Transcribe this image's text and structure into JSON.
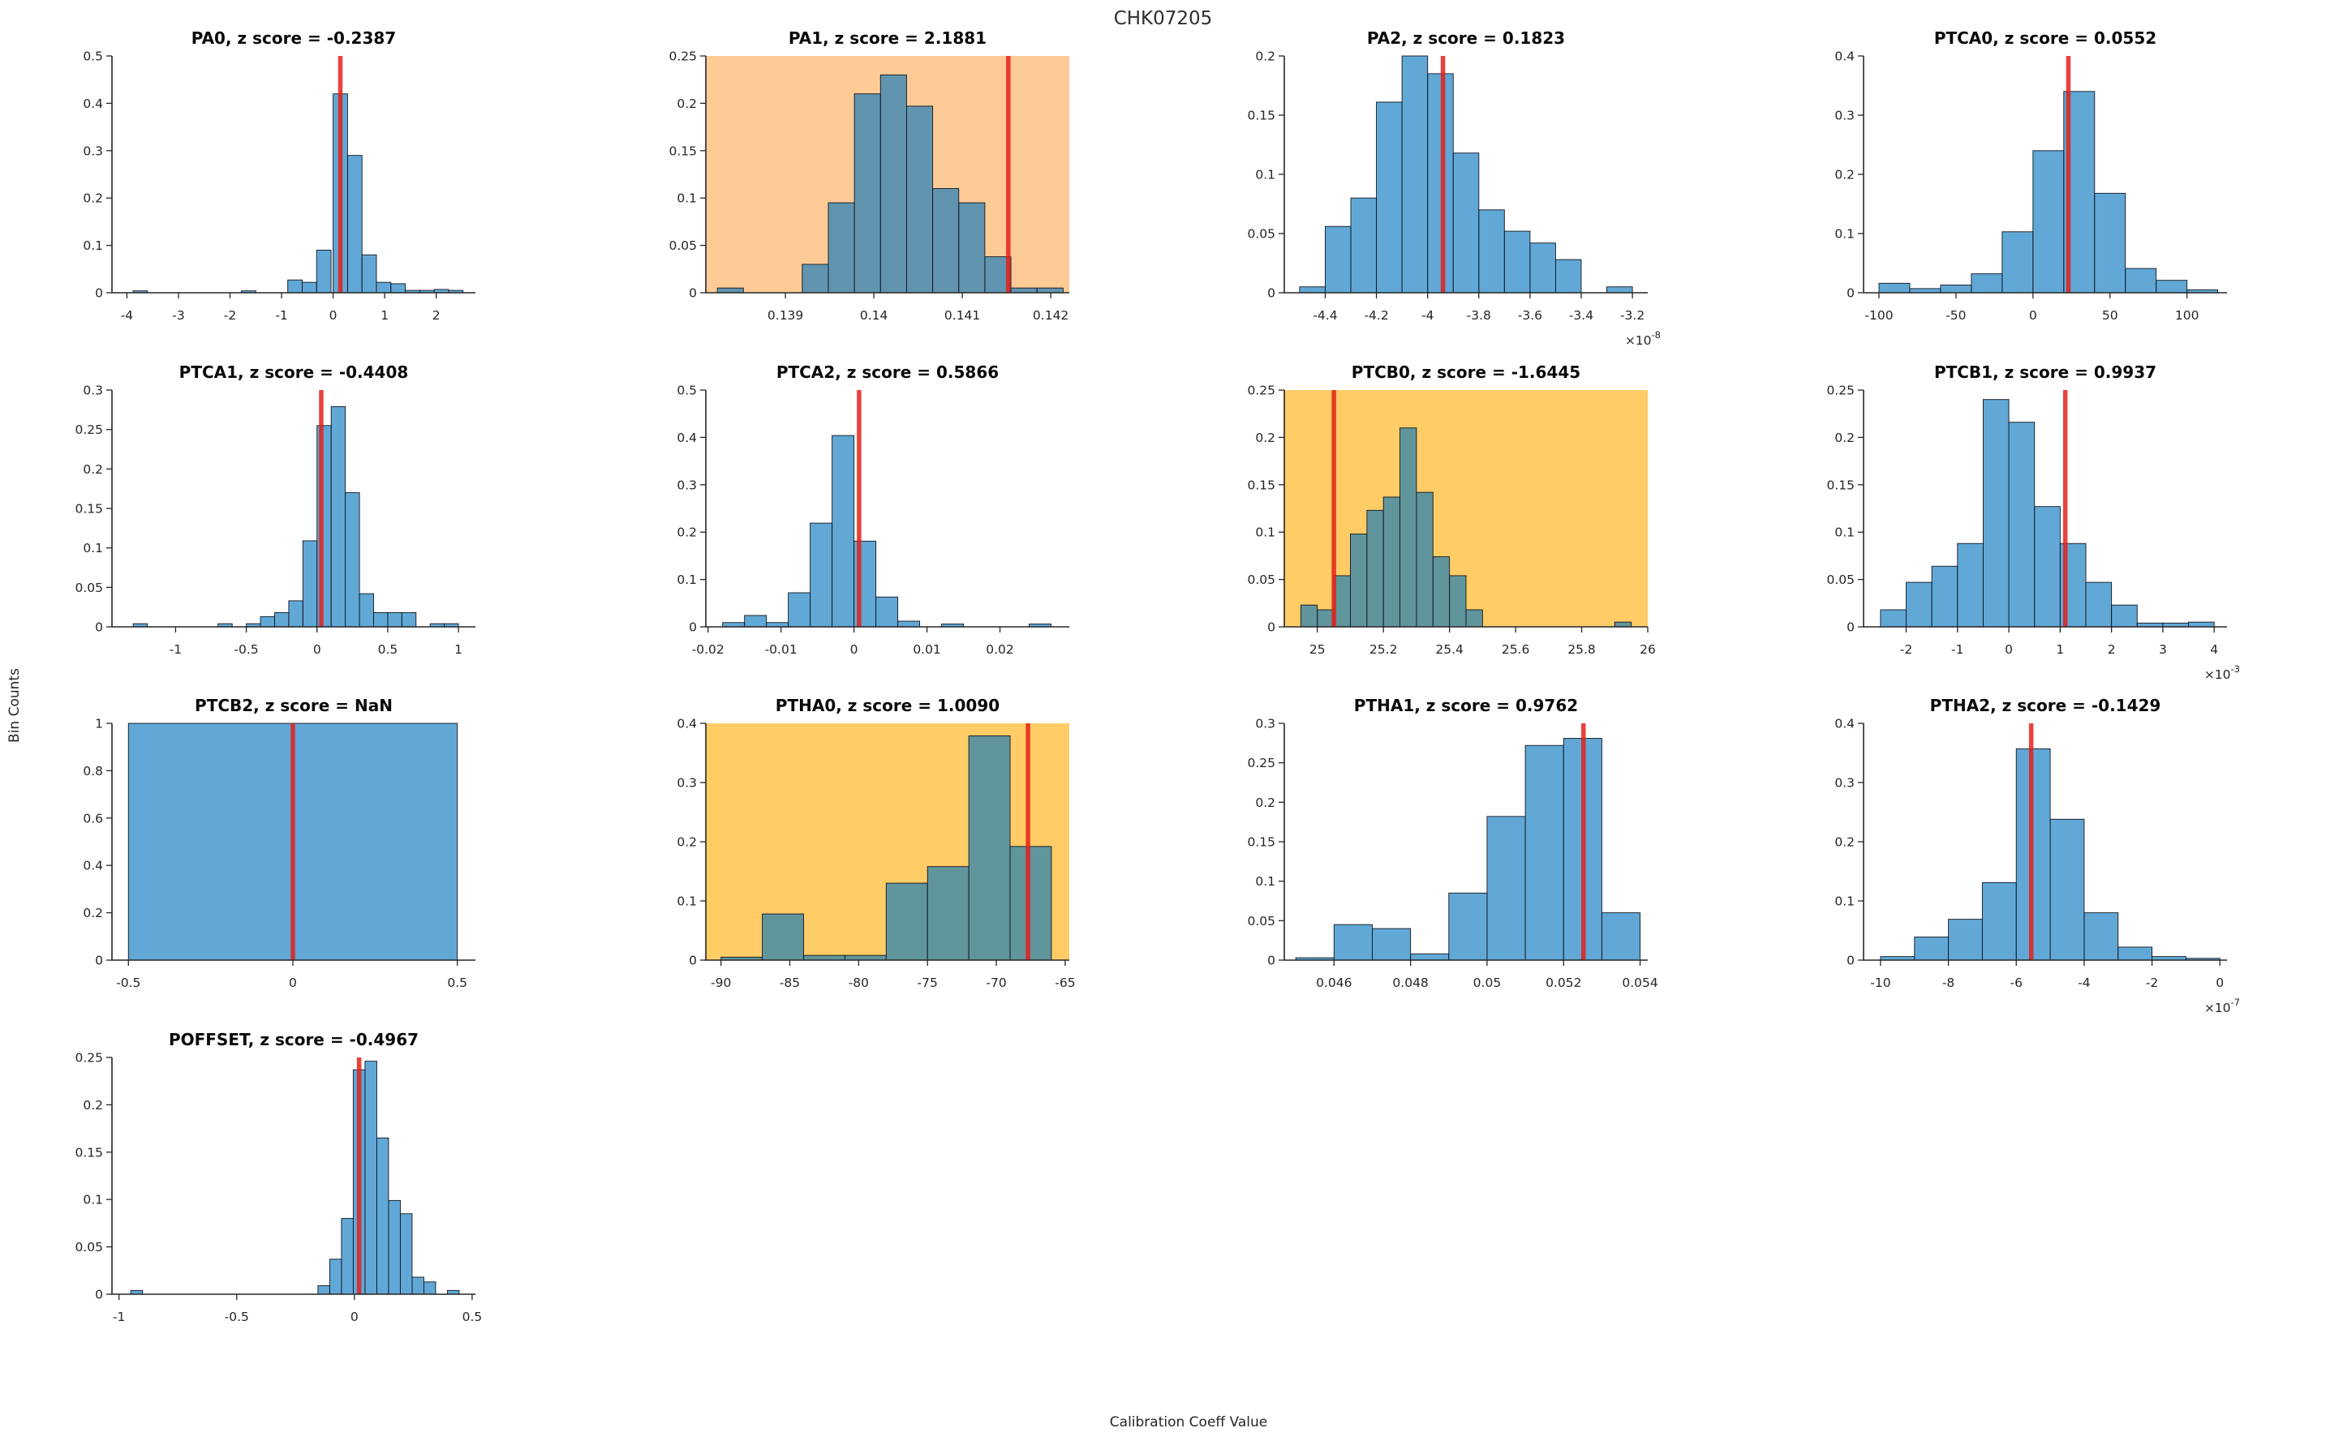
{
  "figure": {
    "title": "CHK07205",
    "xlabel": "Calibration Coeff Value",
    "ylabel": "Bin Counts"
  },
  "colors": {
    "bar_fill": "#0072BD",
    "bar_fill_alpha": 0.62,
    "bar_edge": "#15151f",
    "marker_red": "#e51e17",
    "marker_alpha": 0.84,
    "axis": "#262626",
    "warn_orange": "#FECB97",
    "warn_amber": "#FFCC66"
  },
  "chart_data": [
    {
      "type": "histogram",
      "id": "PA0",
      "title": "PA0, z score = -0.2387",
      "grid": {
        "row": 0,
        "col": 0
      },
      "bg": null,
      "xlim": [
        -4.29,
        2.76
      ],
      "ylim": [
        0,
        0.5
      ],
      "xticks": {
        "values": [
          -4,
          -3,
          -2,
          -1,
          0,
          1,
          2
        ],
        "labels": [
          "-4",
          "-3",
          "-2",
          "-1",
          "0",
          "1",
          "2"
        ]
      },
      "yticks": {
        "values": [
          0,
          0.1,
          0.2,
          0.3,
          0.4,
          0.5
        ],
        "labels": [
          "0",
          "0.1",
          "0.2",
          "0.3",
          "0.4",
          "0.5"
        ]
      },
      "x_exponent": null,
      "bin_width": 0.28,
      "bins": [
        [
          -3.88,
          0.004
        ],
        [
          -1.78,
          0.004
        ],
        [
          -0.88,
          0.027
        ],
        [
          -0.6,
          0.022
        ],
        [
          -0.32,
          0.09
        ],
        [
          0,
          0.42
        ],
        [
          0.28,
          0.29
        ],
        [
          0.56,
          0.08
        ],
        [
          0.84,
          0.022
        ],
        [
          1.12,
          0.019
        ],
        [
          1.4,
          0.005
        ],
        [
          1.68,
          0.005
        ],
        [
          1.96,
          0.007
        ],
        [
          2.24,
          0.005
        ]
      ],
      "marker_x": 0.14
    },
    {
      "type": "histogram",
      "id": "PA1",
      "title": "PA1, z score = 2.1881",
      "grid": {
        "row": 0,
        "col": 1
      },
      "bg": "#FECB97",
      "xlim": [
        0.1381,
        0.14221
      ],
      "ylim": [
        0,
        0.25
      ],
      "xticks": {
        "values": [
          0.139,
          0.14,
          0.141,
          0.142
        ],
        "labels": [
          "0.139",
          "0.14",
          "0.141",
          "0.142"
        ]
      },
      "yticks": {
        "values": [
          0,
          0.05,
          0.1,
          0.15,
          0.2,
          0.25
        ],
        "labels": [
          "0",
          "0.05",
          "0.1",
          "0.15",
          "0.2",
          "0.25"
        ]
      },
      "x_exponent": null,
      "bin_width": 0.000295,
      "bins": [
        [
          0.13823,
          0.005
        ],
        [
          0.13919,
          0.03
        ],
        [
          0.139485,
          0.095
        ],
        [
          0.13978,
          0.21
        ],
        [
          0.140075,
          0.23
        ],
        [
          0.14037,
          0.197
        ],
        [
          0.140665,
          0.11
        ],
        [
          0.14096,
          0.095
        ],
        [
          0.141255,
          0.038
        ],
        [
          0.14155,
          0.005
        ],
        [
          0.141845,
          0.005
        ]
      ],
      "marker_x": 0.14152
    },
    {
      "type": "histogram",
      "id": "PA2",
      "title": "PA2, z score = 0.1823",
      "grid": {
        "row": 0,
        "col": 2
      },
      "bg": null,
      "xlim": [
        -4.56,
        -3.14
      ],
      "ylim": [
        0,
        0.2
      ],
      "xticks": {
        "values": [
          -4.4,
          -4.2,
          -4,
          -3.8,
          -3.6,
          -3.4,
          -3.2
        ],
        "labels": [
          "-4.4",
          "-4.2",
          "-4",
          "-3.8",
          "-3.6",
          "-3.4",
          "-3.2"
        ]
      },
      "yticks": {
        "values": [
          0,
          0.05,
          0.1,
          0.15,
          0.2
        ],
        "labels": [
          "0",
          "0.05",
          "0.1",
          "0.15",
          "0.2"
        ]
      },
      "x_exponent": "-8",
      "bin_width": 0.1,
      "bins": [
        [
          -4.5,
          0.005
        ],
        [
          -4.4,
          0.056
        ],
        [
          -4.3,
          0.08
        ],
        [
          -4.2,
          0.161
        ],
        [
          -4.1,
          0.2
        ],
        [
          -4.0,
          0.185
        ],
        [
          -3.9,
          0.118
        ],
        [
          -3.8,
          0.07
        ],
        [
          -3.7,
          0.052
        ],
        [
          -3.6,
          0.042
        ],
        [
          -3.5,
          0.028
        ],
        [
          -3.3,
          0.005
        ]
      ],
      "marker_x": -3.94
    },
    {
      "type": "histogram",
      "id": "PTCA0",
      "title": "PTCA0, z score = 0.0552",
      "grid": {
        "row": 0,
        "col": 3
      },
      "bg": null,
      "xlim": [
        -110,
        126
      ],
      "ylim": [
        0,
        0.4
      ],
      "xticks": {
        "values": [
          -100,
          -50,
          0,
          50,
          100
        ],
        "labels": [
          "-100",
          "-50",
          "0",
          "50",
          "100"
        ]
      },
      "yticks": {
        "values": [
          0,
          0.1,
          0.2,
          0.3,
          0.4
        ],
        "labels": [
          "0",
          "0.1",
          "0.2",
          "0.3",
          "0.4"
        ]
      },
      "x_exponent": null,
      "bin_width": 20,
      "bins": [
        [
          -100,
          0.016
        ],
        [
          -80,
          0.007
        ],
        [
          -60,
          0.013
        ],
        [
          -40,
          0.032
        ],
        [
          -20,
          0.103
        ],
        [
          0,
          0.24
        ],
        [
          20,
          0.34
        ],
        [
          40,
          0.168
        ],
        [
          60,
          0.041
        ],
        [
          80,
          0.021
        ],
        [
          100,
          0.005
        ]
      ],
      "marker_x": 23
    },
    {
      "type": "histogram",
      "id": "PTCA1",
      "title": "PTCA1, z score = -0.4408",
      "grid": {
        "row": 1,
        "col": 0
      },
      "bg": null,
      "xlim": [
        -1.45,
        1.12
      ],
      "ylim": [
        0,
        0.3
      ],
      "xticks": {
        "values": [
          -1,
          -0.5,
          0,
          0.5,
          1
        ],
        "labels": [
          "-1",
          "-0.5",
          "0",
          "0.5",
          "1"
        ]
      },
      "yticks": {
        "values": [
          0,
          0.05,
          0.1,
          0.15,
          0.2,
          0.25,
          0.3
        ],
        "labels": [
          "0",
          "0.05",
          "0.1",
          "0.15",
          "0.2",
          "0.25",
          "0.3"
        ]
      },
      "x_exponent": null,
      "bin_width": 0.1,
      "bins": [
        [
          -1.3,
          0.004
        ],
        [
          -0.7,
          0.004
        ],
        [
          -0.5,
          0.004
        ],
        [
          -0.4,
          0.013
        ],
        [
          -0.3,
          0.018
        ],
        [
          -0.2,
          0.033
        ],
        [
          -0.1,
          0.109
        ],
        [
          0,
          0.255
        ],
        [
          0.1,
          0.279
        ],
        [
          0.2,
          0.17
        ],
        [
          0.3,
          0.042
        ],
        [
          0.4,
          0.018
        ],
        [
          0.5,
          0.018
        ],
        [
          0.6,
          0.018
        ],
        [
          0.8,
          0.004
        ],
        [
          0.9,
          0.004
        ]
      ],
      "marker_x": 0.03
    },
    {
      "type": "histogram",
      "id": "PTCA2",
      "title": "PTCA2, z score = 0.5866",
      "grid": {
        "row": 1,
        "col": 1
      },
      "bg": null,
      "xlim": [
        -0.0203,
        0.0295
      ],
      "ylim": [
        0,
        0.5
      ],
      "xticks": {
        "values": [
          -0.02,
          -0.01,
          0,
          0.01,
          0.02
        ],
        "labels": [
          "-0.02",
          "-0.01",
          "0",
          "0.01",
          "0.02"
        ]
      },
      "yticks": {
        "values": [
          0,
          0.1,
          0.2,
          0.3,
          0.4,
          0.5
        ],
        "labels": [
          "0",
          "0.1",
          "0.2",
          "0.3",
          "0.4",
          "0.5"
        ]
      },
      "x_exponent": null,
      "bin_width": 0.003,
      "bins": [
        [
          -0.018,
          0.009
        ],
        [
          -0.015,
          0.024
        ],
        [
          -0.012,
          0.009
        ],
        [
          -0.009,
          0.072
        ],
        [
          -0.006,
          0.219
        ],
        [
          -0.003,
          0.404
        ],
        [
          0,
          0.181
        ],
        [
          0.003,
          0.063
        ],
        [
          0.006,
          0.012
        ],
        [
          0.012,
          0.006
        ],
        [
          0.024,
          0.006
        ]
      ],
      "marker_x": 0.0007
    },
    {
      "type": "histogram",
      "id": "PTCB0",
      "title": "PTCB0, z score = -1.6445",
      "grid": {
        "row": 1,
        "col": 2
      },
      "bg": "#FFCC66",
      "xlim": [
        24.9,
        26
      ],
      "ylim": [
        0,
        0.25
      ],
      "xticks": {
        "values": [
          25,
          25.2,
          25.4,
          25.6,
          25.8,
          26
        ],
        "labels": [
          "25",
          "25.2",
          "25.4",
          "25.6",
          "25.8",
          "26"
        ]
      },
      "yticks": {
        "values": [
          0,
          0.05,
          0.1,
          0.15,
          0.2,
          0.25
        ],
        "labels": [
          "0",
          "0.05",
          "0.1",
          "0.15",
          "0.2",
          "0.25"
        ]
      },
      "x_exponent": null,
      "bin_width": 0.05,
      "bins": [
        [
          24.95,
          0.023
        ],
        [
          25.0,
          0.018
        ],
        [
          25.05,
          0.054
        ],
        [
          25.1,
          0.098
        ],
        [
          25.15,
          0.123
        ],
        [
          25.2,
          0.137
        ],
        [
          25.25,
          0.21
        ],
        [
          25.3,
          0.142
        ],
        [
          25.35,
          0.074
        ],
        [
          25.4,
          0.054
        ],
        [
          25.45,
          0.018
        ],
        [
          25.9,
          0.005
        ]
      ],
      "marker_x": 25.05
    },
    {
      "type": "histogram",
      "id": "PTCB1",
      "title": "PTCB1, z score = 0.9937",
      "grid": {
        "row": 1,
        "col": 3
      },
      "bg": null,
      "xlim": [
        -2.83,
        4.25
      ],
      "ylim": [
        0,
        0.25
      ],
      "xticks": {
        "values": [
          -2,
          -1,
          0,
          1,
          2,
          3,
          4
        ],
        "labels": [
          "-2",
          "-1",
          "0",
          "1",
          "2",
          "3",
          "4"
        ]
      },
      "yticks": {
        "values": [
          0,
          0.05,
          0.1,
          0.15,
          0.2,
          0.25
        ],
        "labels": [
          "0",
          "0.05",
          "0.1",
          "0.15",
          "0.2",
          "0.25"
        ]
      },
      "x_exponent": "-3",
      "bin_width": 0.5,
      "bins": [
        [
          -2.5,
          0.018
        ],
        [
          -2,
          0.047
        ],
        [
          -1.5,
          0.064
        ],
        [
          -1,
          0.088
        ],
        [
          -0.5,
          0.24
        ],
        [
          0,
          0.216
        ],
        [
          0.5,
          0.127
        ],
        [
          1,
          0.088
        ],
        [
          1.5,
          0.047
        ],
        [
          2,
          0.023
        ],
        [
          2.5,
          0.004
        ],
        [
          3,
          0.004
        ],
        [
          3.5,
          0.005
        ]
      ],
      "marker_x": 1.1
    },
    {
      "type": "histogram",
      "id": "PTCB2",
      "title": "PTCB2, z score = NaN",
      "grid": {
        "row": 2,
        "col": 0
      },
      "bg": null,
      "xlim": [
        -0.55,
        0.555
      ],
      "ylim": [
        0,
        1
      ],
      "xticks": {
        "values": [
          -0.5,
          0,
          0.5
        ],
        "labels": [
          "-0.5",
          "0",
          "0.5"
        ]
      },
      "yticks": {
        "values": [
          0,
          0.2,
          0.4,
          0.6,
          0.8,
          1
        ],
        "labels": [
          "0",
          "0.2",
          "0.4",
          "0.6",
          "0.8",
          "1"
        ]
      },
      "x_exponent": null,
      "bin_width": 1.0,
      "bins": [
        [
          -0.5,
          1
        ]
      ],
      "marker_x": 0
    },
    {
      "type": "histogram",
      "id": "PTHA0",
      "title": "PTHA0, z score = 1.0090",
      "grid": {
        "row": 2,
        "col": 1
      },
      "bg": "#FFCC66",
      "xlim": [
        -91.1,
        -64.7
      ],
      "ylim": [
        0,
        0.4
      ],
      "xticks": {
        "values": [
          -90,
          -85,
          -80,
          -75,
          -70,
          -65
        ],
        "labels": [
          "-90",
          "-85",
          "-80",
          "-75",
          "-70",
          "-65"
        ]
      },
      "yticks": {
        "values": [
          0,
          0.1,
          0.2,
          0.3,
          0.4
        ],
        "labels": [
          "0",
          "0.1",
          "0.2",
          "0.3",
          "0.4"
        ]
      },
      "x_exponent": null,
      "bin_width": 3,
      "bins": [
        [
          -90,
          0.005
        ],
        [
          -87,
          0.078
        ],
        [
          -84,
          0.008
        ],
        [
          -81,
          0.008
        ],
        [
          -78,
          0.13
        ],
        [
          -75,
          0.158
        ],
        [
          -72,
          0.379
        ],
        [
          -69,
          0.192
        ]
      ],
      "marker_x": -67.7
    },
    {
      "type": "histogram",
      "id": "PTHA1",
      "title": "PTHA1, z score = 0.9762",
      "grid": {
        "row": 2,
        "col": 2
      },
      "bg": null,
      "xlim": [
        0.0447,
        0.0542
      ],
      "ylim": [
        0,
        0.3
      ],
      "xticks": {
        "values": [
          0.046,
          0.048,
          0.05,
          0.052,
          0.054
        ],
        "labels": [
          "0.046",
          "0.048",
          "0.05",
          "0.052",
          "0.054"
        ]
      },
      "yticks": {
        "values": [
          0,
          0.05,
          0.1,
          0.15,
          0.2,
          0.25,
          0.3
        ],
        "labels": [
          "0",
          "0.05",
          "0.1",
          "0.15",
          "0.2",
          "0.25",
          "0.3"
        ]
      },
      "x_exponent": null,
      "bin_width": 0.001,
      "bins": [
        [
          0.045,
          0.003
        ],
        [
          0.046,
          0.045
        ],
        [
          0.047,
          0.04
        ],
        [
          0.048,
          0.008
        ],
        [
          0.049,
          0.085
        ],
        [
          0.05,
          0.182
        ],
        [
          0.051,
          0.272
        ],
        [
          0.052,
          0.281
        ],
        [
          0.053,
          0.06
        ]
      ],
      "marker_x": 0.05252
    },
    {
      "type": "histogram",
      "id": "PTHA2",
      "title": "PTHA2, z score = -0.1429",
      "grid": {
        "row": 2,
        "col": 3
      },
      "bg": null,
      "xlim": [
        -10.5,
        0.21
      ],
      "ylim": [
        0,
        0.4
      ],
      "xticks": {
        "values": [
          -10,
          -8,
          -6,
          -4,
          -2,
          0
        ],
        "labels": [
          "-10",
          "-8",
          "-6",
          "-4",
          "-2",
          "0"
        ]
      },
      "yticks": {
        "values": [
          0,
          0.1,
          0.2,
          0.3,
          0.4
        ],
        "labels": [
          "0",
          "0.1",
          "0.2",
          "0.3",
          "0.4"
        ]
      },
      "x_exponent": "-7",
      "bin_width": 1,
      "bins": [
        [
          -10,
          0.006
        ],
        [
          -9,
          0.039
        ],
        [
          -8,
          0.069
        ],
        [
          -7,
          0.131
        ],
        [
          -6,
          0.357
        ],
        [
          -5,
          0.238
        ],
        [
          -4,
          0.08
        ],
        [
          -3,
          0.022
        ],
        [
          -2,
          0.006
        ],
        [
          -1,
          0.003
        ]
      ],
      "marker_x": -5.56
    },
    {
      "type": "histogram",
      "id": "POFFSET",
      "title": "POFFSET, z score = -0.4967",
      "grid": {
        "row": 3,
        "col": 0
      },
      "bg": null,
      "xlim": [
        -1.03,
        0.514
      ],
      "ylim": [
        0,
        0.25
      ],
      "xticks": {
        "values": [
          -1,
          -0.5,
          0,
          0.5
        ],
        "labels": [
          "-1",
          "-0.5",
          "0",
          "0.5"
        ]
      },
      "yticks": {
        "values": [
          0,
          0.05,
          0.1,
          0.15,
          0.2,
          0.25
        ],
        "labels": [
          "0",
          "0.05",
          "0.1",
          "0.15",
          "0.2",
          "0.25"
        ]
      },
      "x_exponent": null,
      "bin_width": 0.05,
      "bins": [
        [
          -0.95,
          0.004
        ],
        [
          -0.155,
          0.009
        ],
        [
          -0.105,
          0.037
        ],
        [
          -0.055,
          0.08
        ],
        [
          -0.005,
          0.237
        ],
        [
          0.045,
          0.246
        ],
        [
          0.095,
          0.165
        ],
        [
          0.145,
          0.099
        ],
        [
          0.195,
          0.085
        ],
        [
          0.245,
          0.018
        ],
        [
          0.295,
          0.013
        ],
        [
          0.395,
          0.004
        ]
      ],
      "marker_x": 0.02
    }
  ]
}
